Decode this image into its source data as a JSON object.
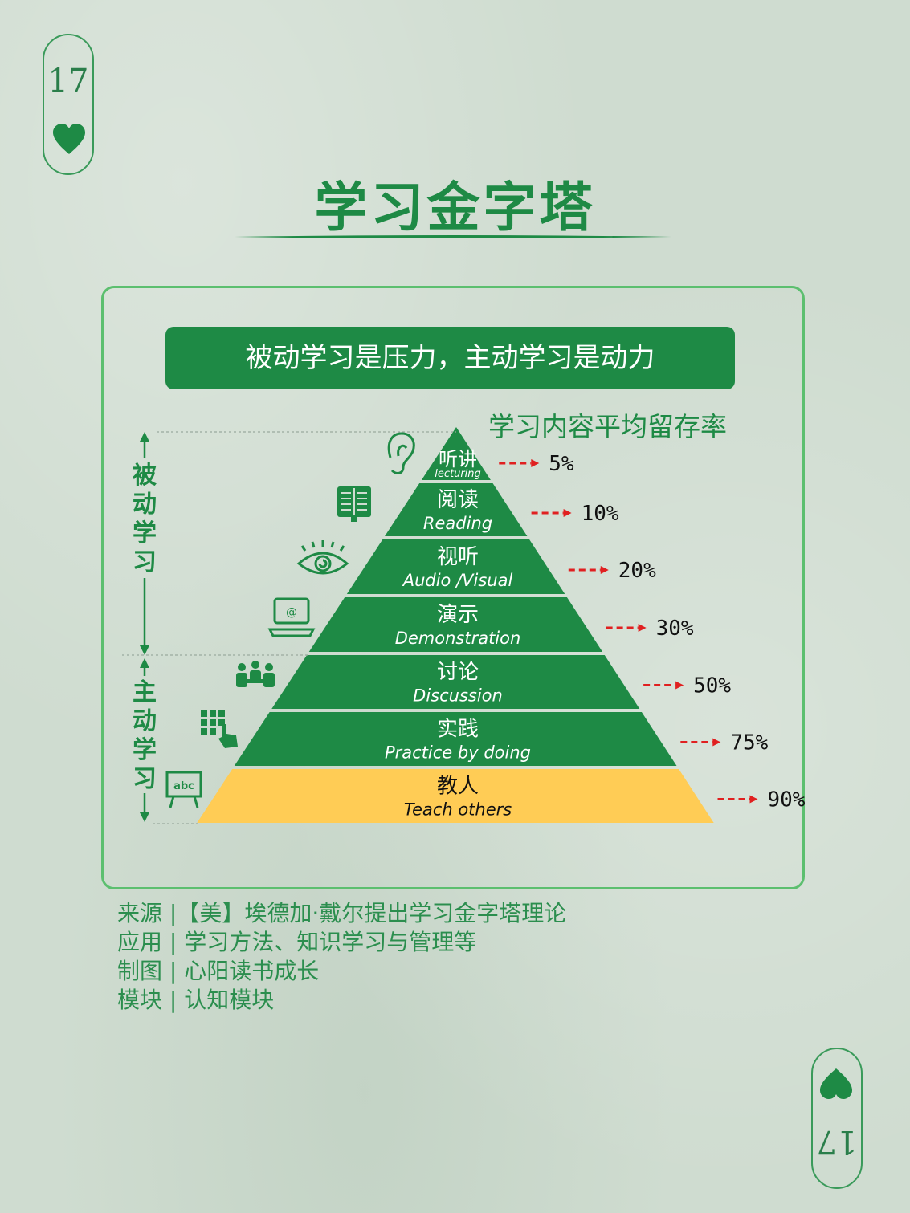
{
  "page": {
    "corner_number_top": "17",
    "corner_number_bottom": "17",
    "title": "学习金字塔",
    "banner": "被动学习是压力，主动学习是动力",
    "retention_title": "学习内容平均留存率"
  },
  "side_labels": {
    "passive": "被动学习",
    "active": "主动学习"
  },
  "layers": [
    {
      "cn": "听讲",
      "en": "lecturing",
      "percent": "5%",
      "icon": "ear-icon",
      "type": "passive"
    },
    {
      "cn": "阅读",
      "en": "Reading",
      "percent": "10%",
      "icon": "book-icon",
      "type": "passive"
    },
    {
      "cn": "视听",
      "en": "Audio /Visual",
      "percent": "20%",
      "icon": "eye-icon",
      "type": "passive"
    },
    {
      "cn": "演示",
      "en": "Demonstration",
      "percent": "30%",
      "icon": "laptop-icon",
      "type": "passive"
    },
    {
      "cn": "讨论",
      "en": "Discussion",
      "percent": "50%",
      "icon": "group-discussion-icon",
      "type": "active"
    },
    {
      "cn": "实践",
      "en": "Practice by doing",
      "percent": "75%",
      "icon": "keypad-touch-icon",
      "type": "active"
    },
    {
      "cn": "教人",
      "en": "Teach others",
      "percent": "90%",
      "icon": "blackboard-abc-icon",
      "type": "active"
    }
  ],
  "colors": {
    "green": "#1e8a45",
    "yellow": "#ffcc55",
    "arrow_red": "#e02020",
    "background": "#cfdcd0"
  },
  "footer": [
    "来源 |【美】埃德加·戴尔提出学习金字塔理论",
    "应用 | 学习方法、知识学习与管理等",
    "制图 | 心阳读书成长",
    "模块 | 认知模块"
  ]
}
